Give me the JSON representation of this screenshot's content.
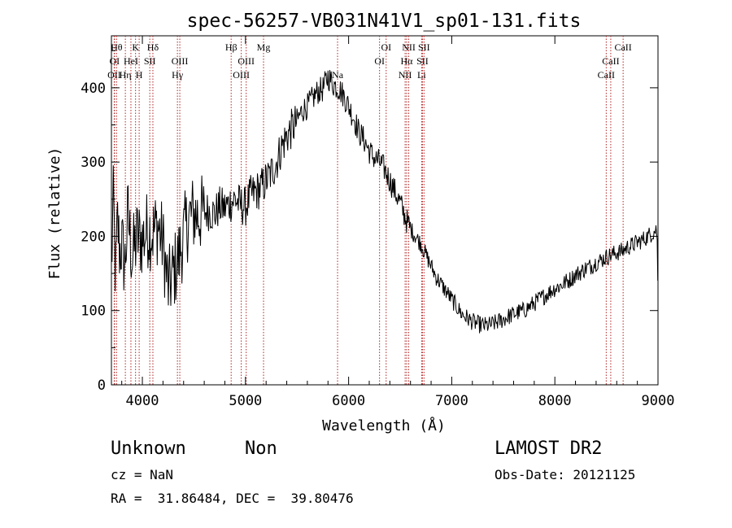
{
  "chart_data": {
    "type": "line",
    "title": "spec-56257-VB031N41V1_sp01-131.fits",
    "xlabel": "Wavelength (Å)",
    "ylabel": "Flux (relative)",
    "xlim": [
      3700,
      9000
    ],
    "ylim": [
      0,
      470
    ],
    "xticks": [
      4000,
      5000,
      6000,
      7000,
      8000,
      9000
    ],
    "yticks": [
      0,
      100,
      200,
      300,
      400
    ],
    "grid": false,
    "series": [
      {
        "x": [
          3700,
          3720,
          3740,
          3760,
          3780,
          3800,
          3830,
          3860,
          3900,
          3950,
          4000,
          4050,
          4100,
          4150,
          4200,
          4250,
          4300,
          4350,
          4400,
          4450,
          4500,
          4550,
          4600,
          4650,
          4700,
          4750,
          4800,
          4850,
          4900,
          4950,
          5000,
          5050,
          5100,
          5150,
          5200,
          5250,
          5300,
          5350,
          5400,
          5450,
          5500,
          5550,
          5600,
          5650,
          5700,
          5750,
          5800,
          5850,
          5900,
          5950,
          6000,
          6050,
          6100,
          6150,
          6200,
          6250,
          6300,
          6350,
          6400,
          6450,
          6500,
          6550,
          6600,
          6650,
          6700,
          6750,
          6800,
          6850,
          6900,
          6950,
          7000,
          7050,
          7100,
          7150,
          7200,
          7250,
          7300,
          7350,
          7400,
          7450,
          7500,
          7550,
          7600,
          7650,
          7700,
          7750,
          7800,
          7850,
          7900,
          7950,
          8000,
          8050,
          8100,
          8150,
          8200,
          8250,
          8300,
          8350,
          8400,
          8450,
          8500,
          8550,
          8600,
          8650,
          8700,
          8750,
          8800,
          8850,
          8900,
          8950,
          8990,
          9000
        ],
        "y": [
          160,
          250,
          140,
          220,
          180,
          190,
          160,
          230,
          170,
          200,
          195,
          210,
          205,
          215,
          190,
          130,
          150,
          170,
          200,
          225,
          230,
          228,
          232,
          235,
          230,
          240,
          238,
          245,
          250,
          242,
          240,
          255,
          260,
          265,
          275,
          285,
          300,
          320,
          335,
          345,
          355,
          370,
          375,
          385,
          395,
          398,
          415,
          405,
          400,
          390,
          375,
          360,
          340,
          330,
          315,
          305,
          300,
          290,
          275,
          260,
          245,
          225,
          210,
          200,
          190,
          175,
          160,
          145,
          135,
          125,
          115,
          105,
          95,
          90,
          85,
          82,
          80,
          80,
          82,
          85,
          88,
          92,
          95,
          98,
          100,
          105,
          110,
          115,
          120,
          125,
          130,
          133,
          138,
          142,
          148,
          152,
          157,
          160,
          165,
          168,
          172,
          175,
          178,
          180,
          185,
          188,
          192,
          195,
          200,
          205,
          210,
          120
        ]
      }
    ],
    "line_markers": [
      {
        "label": "OII",
        "x": 3727,
        "row": 2
      },
      {
        "label": "Hθ",
        "x": 3750,
        "row": 0
      },
      {
        "label": "OI",
        "x": 3730,
        "row": 1
      },
      {
        "label": "Hη",
        "x": 3835,
        "row": 2
      },
      {
        "label": "HeI",
        "x": 3889,
        "row": 1
      },
      {
        "label": "K",
        "x": 3934,
        "row": 0
      },
      {
        "label": "H",
        "x": 3969,
        "row": 2
      },
      {
        "label": "SII",
        "x": 4072,
        "row": 1
      },
      {
        "label": "Hδ",
        "x": 4102,
        "row": 0
      },
      {
        "label": "OIII",
        "x": 4363,
        "row": 1
      },
      {
        "label": "Hγ",
        "x": 4340,
        "row": 2
      },
      {
        "label": "Hβ",
        "x": 4861,
        "row": 0
      },
      {
        "label": "OIII",
        "x": 4959,
        "row": 2
      },
      {
        "label": "OIII",
        "x": 5007,
        "row": 1
      },
      {
        "label": "Mg",
        "x": 5175,
        "row": 0
      },
      {
        "label": "Na",
        "x": 5893,
        "row": 2
      },
      {
        "label": "OI",
        "x": 6300,
        "row": 1
      },
      {
        "label": "OI",
        "x": 6364,
        "row": 0
      },
      {
        "label": "NII",
        "x": 6548,
        "row": 2
      },
      {
        "label": "NII",
        "x": 6583,
        "row": 0
      },
      {
        "label": "Hα",
        "x": 6563,
        "row": 1
      },
      {
        "label": "SII",
        "x": 6716,
        "row": 1
      },
      {
        "label": "SII",
        "x": 6731,
        "row": 0
      },
      {
        "label": "Li",
        "x": 6708,
        "row": 2
      },
      {
        "label": "CaII",
        "x": 8498,
        "row": 2
      },
      {
        "label": "CaII",
        "x": 8542,
        "row": 1
      },
      {
        "label": "CaII",
        "x": 8662,
        "row": 0
      }
    ]
  },
  "footer": {
    "object_class": "Unknown",
    "subclass": "Non",
    "survey": "LAMOST DR2",
    "redshift": "cz = NaN",
    "obs_date": "Obs-Date: 20121125",
    "coords": "RA =  31.86484, DEC =  39.80476"
  }
}
